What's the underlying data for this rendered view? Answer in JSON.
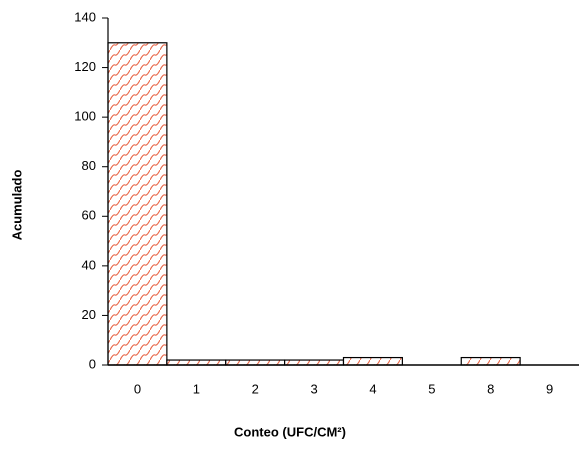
{
  "chart_data": {
    "type": "bar",
    "x_label": "Conteo (UFC/CM²)",
    "y_label": "Acumulado",
    "categories": [
      "0",
      "1",
      "2",
      "3",
      "4",
      "5",
      "8",
      "9"
    ],
    "values": [
      130,
      2,
      2,
      2,
      3,
      0,
      3,
      0
    ],
    "color": "#e8684a",
    "ylim": [
      0,
      140
    ],
    "yticks": [
      0,
      20,
      40,
      60,
      80,
      100,
      120,
      140
    ],
    "grid": false
  }
}
